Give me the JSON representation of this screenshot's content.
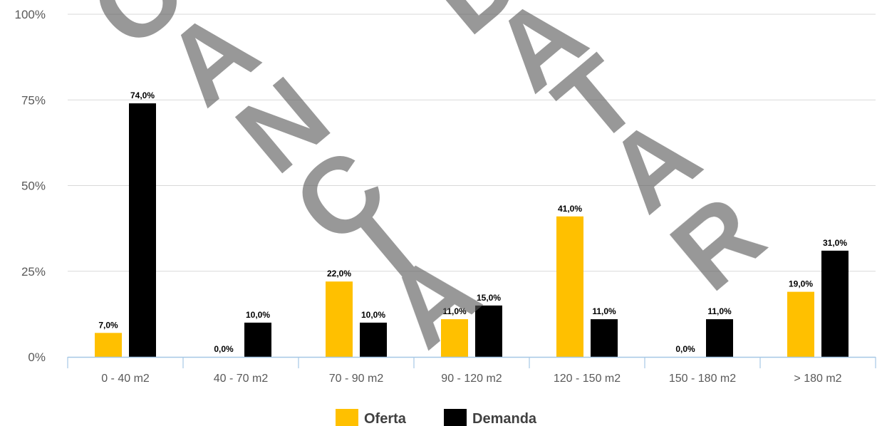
{
  "chart_data": {
    "type": "bar",
    "categories": [
      "0 - 40 m2",
      "40 - 70 m2",
      "70 - 90 m2",
      "90 - 120 m2",
      "120 - 150 m2",
      "150 - 180 m2",
      "> 180 m2"
    ],
    "series": [
      {
        "name": "Oferta",
        "color": "#FFC000",
        "values": [
          7.0,
          0.0,
          22.0,
          11.0,
          41.0,
          0.0,
          19.0
        ],
        "labels": [
          "7,0%",
          "0,0%",
          "22,0%",
          "11,0%",
          "41,0%",
          "0,0%",
          "19,0%"
        ]
      },
      {
        "name": "Demanda",
        "color": "#000000",
        "values": [
          74.0,
          10.0,
          10.0,
          15.0,
          11.0,
          11.0,
          31.0
        ],
        "labels": [
          "74,0%",
          "10,0%",
          "10,0%",
          "15,0%",
          "11,0%",
          "11,0%",
          "31,0%"
        ]
      }
    ],
    "yticks": [
      0,
      25,
      50,
      75,
      100
    ],
    "ytick_labels": [
      "0%",
      "25%",
      "50%",
      "75%",
      "100%"
    ],
    "ylim": [
      0,
      100
    ],
    "grid": true,
    "legend_position": "bottom",
    "watermark": "CANCIA DATAR"
  }
}
